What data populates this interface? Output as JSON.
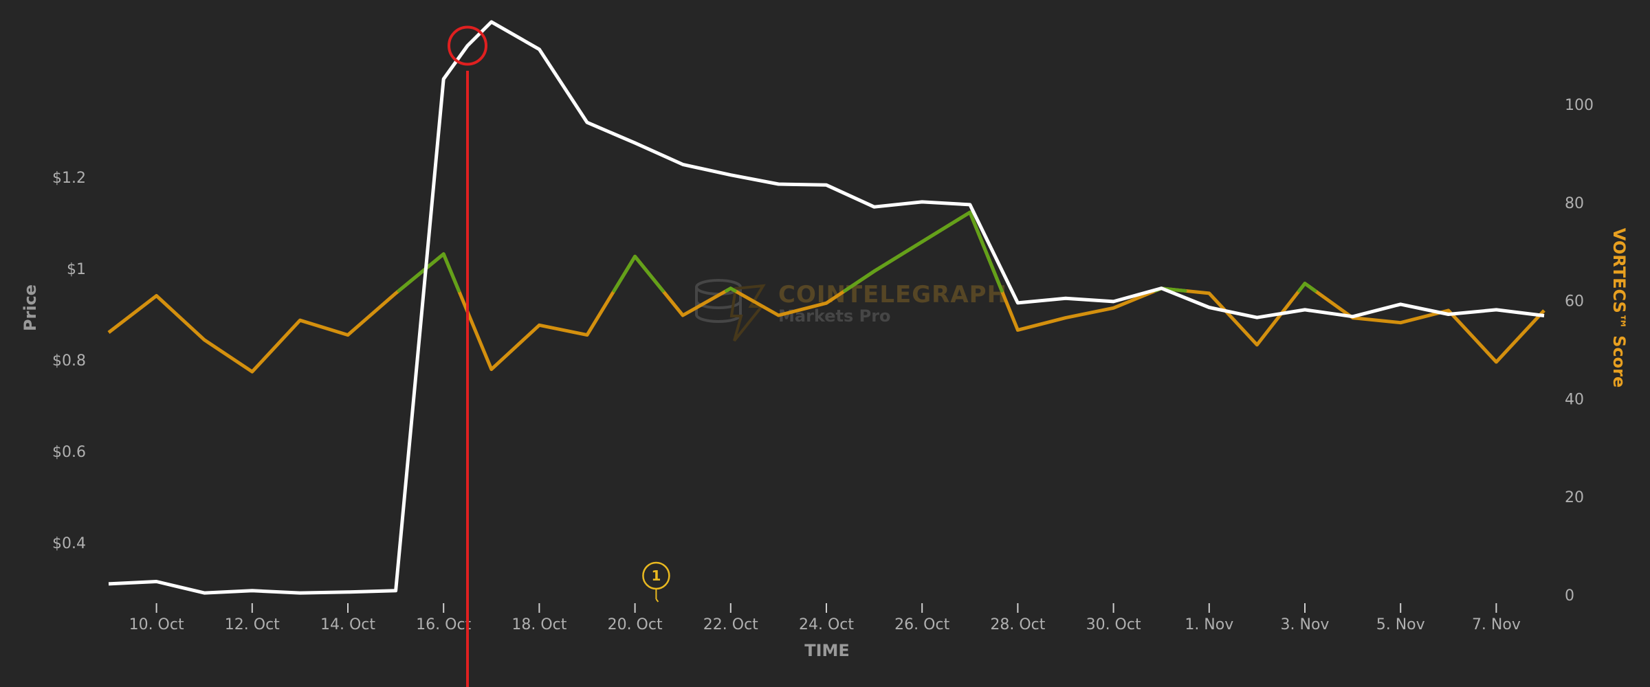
{
  "chart_data": {
    "type": "line",
    "xlabel": "TIME",
    "ylabel_left": "Price",
    "ylabel_right": "VORTECS™ Score",
    "x_ticks": [
      "10. Oct",
      "12. Oct",
      "14. Oct",
      "16. Oct",
      "18. Oct",
      "20. Oct",
      "22. Oct",
      "24. Oct",
      "26. Oct",
      "28. Oct",
      "30. Oct",
      "1. Nov",
      "3. Nov",
      "5. Nov",
      "7. Nov"
    ],
    "y_left_ticks": [
      {
        "value": 0.4,
        "label": "$0.4"
      },
      {
        "value": 0.6,
        "label": "$0.6"
      },
      {
        "value": 0.8,
        "label": "$0.8"
      },
      {
        "value": 1.0,
        "label": "$1"
      },
      {
        "value": 1.2,
        "label": "$1.2"
      }
    ],
    "y_right_ticks": [
      {
        "value": 0,
        "label": "0"
      },
      {
        "value": 20,
        "label": "20"
      },
      {
        "value": 40,
        "label": "40"
      },
      {
        "value": 60,
        "label": "60"
      },
      {
        "value": 80,
        "label": "80"
      },
      {
        "value": 100,
        "label": "100"
      }
    ],
    "x_range": [
      "2021-10-09",
      "2021-11-08"
    ],
    "y_left_range": [
      0.28,
      1.5
    ],
    "y_right_range": [
      0,
      100
    ],
    "series": [
      {
        "color": "#ffffff",
        "axis": "left",
        "points": [
          [
            "2021-10-09",
            0.31
          ],
          [
            "2021-10-10",
            0.315
          ],
          [
            "2021-10-11",
            0.29
          ],
          [
            "2021-10-12",
            0.295
          ],
          [
            "2021-10-13",
            0.29
          ],
          [
            "2021-10-14",
            0.292
          ],
          [
            "2021-10-15",
            0.295
          ],
          [
            "2021-10-16",
            1.415
          ],
          [
            "2021-10-16T12:00",
            1.488
          ],
          [
            "2021-10-17",
            1.54
          ],
          [
            "2021-10-18",
            1.48
          ],
          [
            "2021-10-19",
            1.32
          ],
          [
            "2021-10-20",
            1.275
          ],
          [
            "2021-10-21",
            1.228
          ],
          [
            "2021-10-22",
            1.205
          ],
          [
            "2021-10-23",
            1.185
          ],
          [
            "2021-10-24",
            1.183
          ],
          [
            "2021-10-25",
            1.135
          ],
          [
            "2021-10-26",
            1.146
          ],
          [
            "2021-10-27",
            1.14
          ],
          [
            "2021-10-28",
            0.925
          ],
          [
            "2021-10-29",
            0.935
          ],
          [
            "2021-10-30",
            0.928
          ],
          [
            "2021-10-31",
            0.957
          ],
          [
            "2021-11-01",
            0.915
          ],
          [
            "2021-11-02",
            0.893
          ],
          [
            "2021-11-03",
            0.91
          ],
          [
            "2021-11-04",
            0.895
          ],
          [
            "2021-11-05",
            0.922
          ],
          [
            "2021-11-06",
            0.9
          ],
          [
            "2021-11-07",
            0.91
          ],
          [
            "2021-11-08",
            0.897
          ]
        ]
      },
      {
        "color": "#d4900e",
        "color_high": "#63a11a",
        "high_threshold": 62,
        "axis": "right",
        "points": [
          [
            "2021-10-09",
            53.5
          ],
          [
            "2021-10-10",
            61
          ],
          [
            "2021-10-11",
            52
          ],
          [
            "2021-10-12",
            45.5
          ],
          [
            "2021-10-13",
            56
          ],
          [
            "2021-10-14",
            53
          ],
          [
            "2021-10-15",
            61.5
          ],
          [
            "2021-10-16",
            69.5
          ],
          [
            "2021-10-17",
            46
          ],
          [
            "2021-10-18",
            55
          ],
          [
            "2021-10-19",
            53
          ],
          [
            "2021-10-20",
            69
          ],
          [
            "2021-10-21",
            57
          ],
          [
            "2021-10-22",
            62.5
          ],
          [
            "2021-10-23",
            57
          ],
          [
            "2021-10-24",
            59.5
          ],
          [
            "2021-10-25",
            66
          ],
          [
            "2021-10-26",
            72
          ],
          [
            "2021-10-27",
            78
          ],
          [
            "2021-10-28",
            54
          ],
          [
            "2021-10-29",
            56.5
          ],
          [
            "2021-10-30",
            58.5
          ],
          [
            "2021-10-31",
            62.5
          ],
          [
            "2021-11-01",
            61.5
          ],
          [
            "2021-11-02",
            51
          ],
          [
            "2021-11-03",
            63.5
          ],
          [
            "2021-11-04",
            56.5
          ],
          [
            "2021-11-05",
            55.5
          ],
          [
            "2021-11-06",
            58
          ],
          [
            "2021-11-07",
            47.5
          ],
          [
            "2021-11-08",
            58
          ]
        ]
      }
    ],
    "markers": [
      {
        "type": "vertical-line",
        "x": "2021-10-16T12:00",
        "color": "#e02020"
      },
      {
        "type": "circle",
        "x": "2021-10-16T12:00",
        "y": 1.488,
        "color": "#e02020"
      }
    ],
    "annotations": [
      {
        "x": "2021-10-20T12:00",
        "label": "1",
        "color": "#e8b820"
      }
    ],
    "grid": false,
    "watermark": {
      "title": "COINTELEGRAPH",
      "subtitle": "Markets Pro"
    }
  }
}
